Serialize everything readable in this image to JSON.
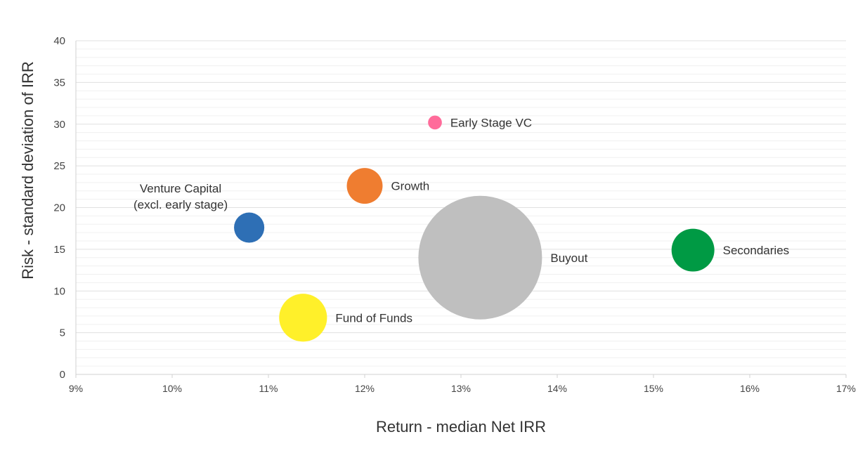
{
  "chart_data": {
    "type": "scatter",
    "title": "",
    "xlabel": "Return - median Net IRR",
    "ylabel": "Risk - standard deviation of IRR",
    "xlim": [
      9,
      17
    ],
    "ylim": [
      0,
      40
    ],
    "x_ticks": [
      "9%",
      "10%",
      "11%",
      "12%",
      "13%",
      "14%",
      "15%",
      "16%",
      "17%"
    ],
    "y_ticks": [
      "0",
      "5",
      "10",
      "15",
      "20",
      "25",
      "30",
      "35",
      "40"
    ],
    "grid": true,
    "legend": "none",
    "points": [
      {
        "label": "Early Stage VC",
        "x": 12.73,
        "y": 30.2,
        "size": 1,
        "color": "#ff6b9a",
        "label_lines": [
          "Early Stage VC"
        ],
        "label_side": "right"
      },
      {
        "label": "Growth",
        "x": 12.0,
        "y": 22.6,
        "size": 6.7,
        "color": "#ef7d30",
        "label_lines": [
          "Growth"
        ],
        "label_side": "right"
      },
      {
        "label": "Venture Capital (excl. early stage)",
        "x": 10.8,
        "y": 17.6,
        "size": 4.8,
        "color": "#2e6fb5",
        "label_lines": [
          "Venture Capital",
          "(excl. early stage)"
        ],
        "label_side": "upper-left"
      },
      {
        "label": "Buyout",
        "x": 13.2,
        "y": 14.0,
        "size": 80,
        "color": "#bfbfbf",
        "label_lines": [
          "Buyout"
        ],
        "label_side": "right"
      },
      {
        "label": "Secondaries",
        "x": 15.41,
        "y": 14.9,
        "size": 9.6,
        "color": "#009a44",
        "label_lines": [
          "Secondaries"
        ],
        "label_side": "right"
      },
      {
        "label": "Fund of Funds",
        "x": 11.36,
        "y": 6.8,
        "size": 12,
        "color": "#fff02a",
        "label_lines": [
          "Fund of Funds"
        ],
        "label_side": "right"
      }
    ]
  }
}
